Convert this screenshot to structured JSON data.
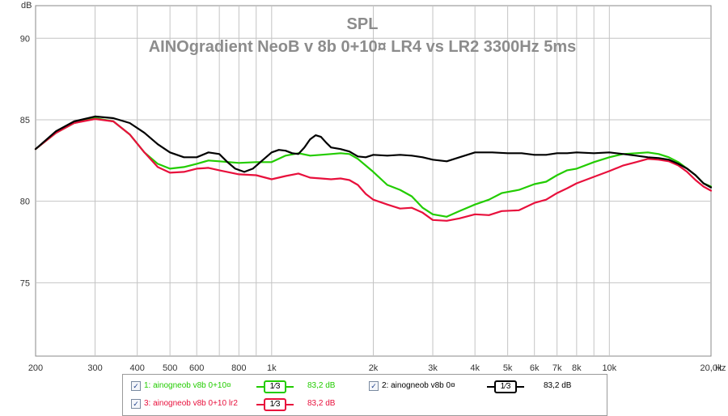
{
  "chart_data": {
    "type": "line",
    "title": "SPL",
    "subtitle": "AINOgradient NeoB v 8b 0+10¤ LR4 vs LR2 3300Hz 5ms",
    "ylabel": "dB",
    "xlabel": "Hz",
    "x_scale": "log",
    "xlim": [
      200,
      20000
    ],
    "ylim": [
      70.5,
      92
    ],
    "grid": true,
    "x_ticks": [
      {
        "value": 200,
        "label": "200"
      },
      {
        "value": 300,
        "label": "300"
      },
      {
        "value": 400,
        "label": "400"
      },
      {
        "value": 500,
        "label": "500"
      },
      {
        "value": 600,
        "label": "600"
      },
      {
        "value": 800,
        "label": "800"
      },
      {
        "value": 1000,
        "label": "1k"
      },
      {
        "value": 2000,
        "label": "2k"
      },
      {
        "value": 3000,
        "label": "3k"
      },
      {
        "value": 4000,
        "label": "4k"
      },
      {
        "value": 5000,
        "label": "5k"
      },
      {
        "value": 6000,
        "label": "6k"
      },
      {
        "value": 7000,
        "label": "7k"
      },
      {
        "value": 8000,
        "label": "8k"
      },
      {
        "value": 10000,
        "label": "10k"
      },
      {
        "value": 20000,
        "label": "20,0k"
      }
    ],
    "minor_x_gridlines": [
      700,
      900,
      9000
    ],
    "y_ticks": [
      75,
      80,
      85,
      90
    ],
    "series": [
      {
        "name": "1: ainogneob v8b 0+10¤",
        "color": "#22cc00",
        "points": [
          [
            200,
            83.2
          ],
          [
            230,
            84.2
          ],
          [
            260,
            84.8
          ],
          [
            300,
            85.1
          ],
          [
            340,
            84.9
          ],
          [
            380,
            84.1
          ],
          [
            420,
            83.0
          ],
          [
            460,
            82.3
          ],
          [
            500,
            82.0
          ],
          [
            550,
            82.1
          ],
          [
            600,
            82.3
          ],
          [
            650,
            82.5
          ],
          [
            700,
            82.45
          ],
          [
            800,
            82.35
          ],
          [
            900,
            82.4
          ],
          [
            1000,
            82.4
          ],
          [
            1100,
            82.8
          ],
          [
            1200,
            82.95
          ],
          [
            1300,
            82.8
          ],
          [
            1400,
            82.85
          ],
          [
            1500,
            82.9
          ],
          [
            1600,
            82.95
          ],
          [
            1700,
            82.9
          ],
          [
            1800,
            82.6
          ],
          [
            2000,
            81.8
          ],
          [
            2200,
            81.0
          ],
          [
            2400,
            80.7
          ],
          [
            2600,
            80.3
          ],
          [
            2800,
            79.6
          ],
          [
            3000,
            79.2
          ],
          [
            3300,
            79.05
          ],
          [
            3600,
            79.4
          ],
          [
            4000,
            79.8
          ],
          [
            4400,
            80.1
          ],
          [
            4800,
            80.5
          ],
          [
            5400,
            80.7
          ],
          [
            6000,
            81.05
          ],
          [
            6500,
            81.2
          ],
          [
            7000,
            81.6
          ],
          [
            7500,
            81.9
          ],
          [
            8000,
            82.0
          ],
          [
            9000,
            82.4
          ],
          [
            10000,
            82.7
          ],
          [
            11000,
            82.9
          ],
          [
            12000,
            82.95
          ],
          [
            13000,
            83.0
          ],
          [
            14000,
            82.9
          ],
          [
            15000,
            82.7
          ],
          [
            16000,
            82.4
          ],
          [
            17000,
            82.0
          ],
          [
            18000,
            81.6
          ],
          [
            19000,
            81.1
          ],
          [
            20000,
            80.9
          ]
        ]
      },
      {
        "name": "2: ainogneob v8b 0¤",
        "color": "#000000",
        "points": [
          [
            200,
            83.2
          ],
          [
            230,
            84.3
          ],
          [
            260,
            84.9
          ],
          [
            300,
            85.2
          ],
          [
            340,
            85.1
          ],
          [
            380,
            84.8
          ],
          [
            420,
            84.2
          ],
          [
            460,
            83.5
          ],
          [
            500,
            83.0
          ],
          [
            550,
            82.7
          ],
          [
            600,
            82.7
          ],
          [
            650,
            83.0
          ],
          [
            700,
            82.9
          ],
          [
            740,
            82.4
          ],
          [
            780,
            82.0
          ],
          [
            830,
            81.8
          ],
          [
            880,
            82.0
          ],
          [
            950,
            82.6
          ],
          [
            1000,
            83.0
          ],
          [
            1050,
            83.15
          ],
          [
            1100,
            83.1
          ],
          [
            1150,
            82.95
          ],
          [
            1200,
            82.9
          ],
          [
            1250,
            83.3
          ],
          [
            1300,
            83.8
          ],
          [
            1350,
            84.05
          ],
          [
            1400,
            83.95
          ],
          [
            1450,
            83.6
          ],
          [
            1500,
            83.3
          ],
          [
            1600,
            83.2
          ],
          [
            1700,
            83.05
          ],
          [
            1800,
            82.75
          ],
          [
            1900,
            82.7
          ],
          [
            2000,
            82.85
          ],
          [
            2200,
            82.8
          ],
          [
            2400,
            82.85
          ],
          [
            2600,
            82.8
          ],
          [
            2800,
            82.7
          ],
          [
            3000,
            82.55
          ],
          [
            3300,
            82.45
          ],
          [
            3600,
            82.7
          ],
          [
            4000,
            83.0
          ],
          [
            4500,
            83.0
          ],
          [
            5000,
            82.95
          ],
          [
            5500,
            82.95
          ],
          [
            6000,
            82.85
          ],
          [
            6500,
            82.85
          ],
          [
            7000,
            82.95
          ],
          [
            7500,
            82.95
          ],
          [
            8000,
            83.0
          ],
          [
            9000,
            82.95
          ],
          [
            10000,
            83.0
          ],
          [
            11000,
            82.9
          ],
          [
            12000,
            82.8
          ],
          [
            13000,
            82.7
          ],
          [
            14000,
            82.65
          ],
          [
            15000,
            82.55
          ],
          [
            16000,
            82.3
          ],
          [
            17000,
            82.0
          ],
          [
            18000,
            81.6
          ],
          [
            19000,
            81.1
          ],
          [
            20000,
            80.85
          ]
        ]
      },
      {
        "name": "3: ainogneob v8b 0+10 lr2",
        "color": "#e8103c",
        "points": [
          [
            200,
            83.2
          ],
          [
            230,
            84.2
          ],
          [
            260,
            84.8
          ],
          [
            300,
            85.05
          ],
          [
            340,
            84.9
          ],
          [
            380,
            84.1
          ],
          [
            420,
            83.0
          ],
          [
            460,
            82.1
          ],
          [
            500,
            81.75
          ],
          [
            550,
            81.8
          ],
          [
            600,
            82.0
          ],
          [
            650,
            82.05
          ],
          [
            700,
            81.9
          ],
          [
            800,
            81.65
          ],
          [
            900,
            81.6
          ],
          [
            1000,
            81.35
          ],
          [
            1100,
            81.55
          ],
          [
            1200,
            81.7
          ],
          [
            1300,
            81.45
          ],
          [
            1400,
            81.4
          ],
          [
            1500,
            81.35
          ],
          [
            1600,
            81.4
          ],
          [
            1700,
            81.3
          ],
          [
            1800,
            81.0
          ],
          [
            1900,
            80.45
          ],
          [
            2000,
            80.1
          ],
          [
            2200,
            79.8
          ],
          [
            2400,
            79.55
          ],
          [
            2600,
            79.6
          ],
          [
            2800,
            79.3
          ],
          [
            3000,
            78.85
          ],
          [
            3300,
            78.8
          ],
          [
            3600,
            78.95
          ],
          [
            4000,
            79.2
          ],
          [
            4400,
            79.15
          ],
          [
            4800,
            79.4
          ],
          [
            5400,
            79.45
          ],
          [
            6000,
            79.9
          ],
          [
            6500,
            80.1
          ],
          [
            7000,
            80.5
          ],
          [
            7500,
            80.8
          ],
          [
            8000,
            81.1
          ],
          [
            9000,
            81.5
          ],
          [
            10000,
            81.85
          ],
          [
            11000,
            82.2
          ],
          [
            12000,
            82.4
          ],
          [
            13000,
            82.6
          ],
          [
            14000,
            82.55
          ],
          [
            15000,
            82.45
          ],
          [
            16000,
            82.2
          ],
          [
            17000,
            81.8
          ],
          [
            18000,
            81.3
          ],
          [
            19000,
            80.9
          ],
          [
            20000,
            80.65
          ]
        ]
      }
    ]
  },
  "legend": {
    "items": [
      {
        "label": "1: ainogneob v8b 0+10¤",
        "smoothing": "1⁄3",
        "level": "83,2 dB",
        "color": "#22cc00"
      },
      {
        "label": "2: ainogneob v8b 0¤",
        "smoothing": "1⁄3",
        "level": "83,2 dB",
        "color": "#000000"
      },
      {
        "label": "3: ainogneob v8b 0+10 lr2",
        "smoothing": "1⁄3",
        "level": "83,2 dB",
        "color": "#e8103c"
      }
    ],
    "checkmark": "✓"
  }
}
